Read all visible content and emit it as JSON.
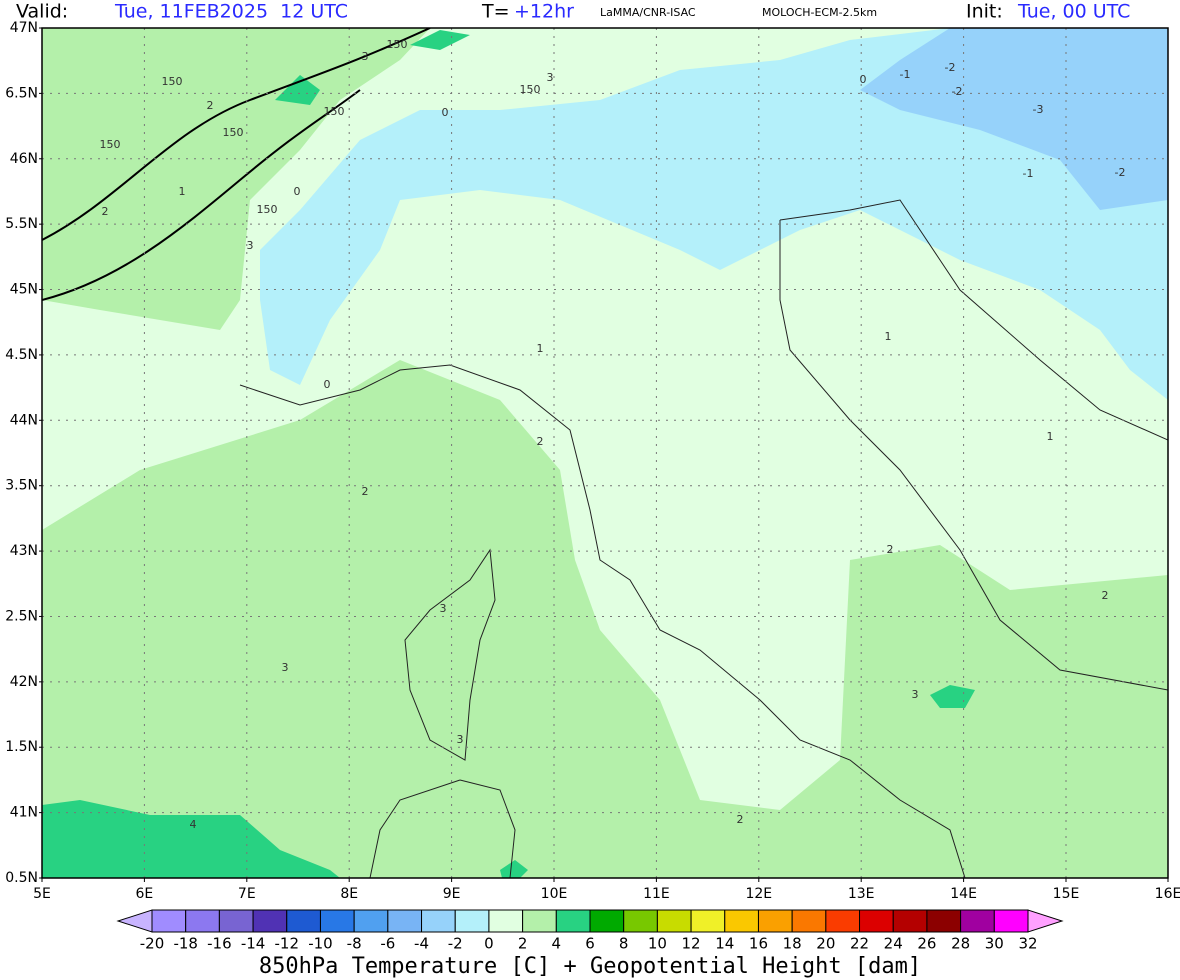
{
  "header": {
    "valid_label": "Valid:",
    "valid_time": "Tue, 11FEB2025  12 UTC",
    "step_label": "T=",
    "step": "+12hr",
    "source": "LaMMA/CNR-ISAC",
    "model": "MOLOCH-ECM-2.5km",
    "init_label": "Init:",
    "init_time": "Tue, 00 UTC"
  },
  "map": {
    "lat_labels": [
      "47N",
      "6.5N",
      "46N",
      "5.5N",
      "45N",
      "4.5N",
      "44N",
      "3.5N",
      "43N",
      "2.5N",
      "42N",
      "1.5N",
      "41N",
      "0.5N"
    ],
    "lon_labels": [
      "5E",
      "6E",
      "7E",
      "8E",
      "9E",
      "10E",
      "11E",
      "12E",
      "13E",
      "14E",
      "15E",
      "16E"
    ],
    "contour_labels": [
      "150",
      "150",
      "150",
      "150",
      "150",
      "150",
      "150",
      "3",
      "3",
      "3",
      "2",
      "1",
      "2",
      "0",
      "0",
      "0",
      "-1",
      "-2",
      "-2",
      "-3",
      "-1",
      "-2",
      "1",
      "1",
      "2",
      "2",
      "2",
      "3",
      "3",
      "3",
      "4",
      "2",
      "3",
      "2",
      "0",
      "1"
    ]
  },
  "colorbar": {
    "labels": [
      "-20",
      "-18",
      "-16",
      "-14",
      "-12",
      "-10",
      "-8",
      "-6",
      "-4",
      "-2",
      "0",
      "2",
      "4",
      "6",
      "8",
      "10",
      "12",
      "14",
      "16",
      "18",
      "20",
      "22",
      "24",
      "26",
      "28",
      "30",
      "32"
    ],
    "colors": [
      "#c8b4ff",
      "#a08cff",
      "#8c78f0",
      "#7864d2",
      "#5032b4",
      "#1e5ad2",
      "#2878e6",
      "#50a0f0",
      "#78b4f5",
      "#96d2fa",
      "#b4f0fa",
      "#e1ffe1",
      "#b4f0aa",
      "#28d282",
      "#00aa00",
      "#78c800",
      "#c8dc00",
      "#f0f028",
      "#fac800",
      "#faa000",
      "#fa7800",
      "#fa3c00",
      "#dc0000",
      "#b40000",
      "#8c0000",
      "#a000a0",
      "#ff00ff",
      "#ffa0ff"
    ],
    "title": "850hPa Temperature [C] + Geopotential Height [dam]"
  }
}
